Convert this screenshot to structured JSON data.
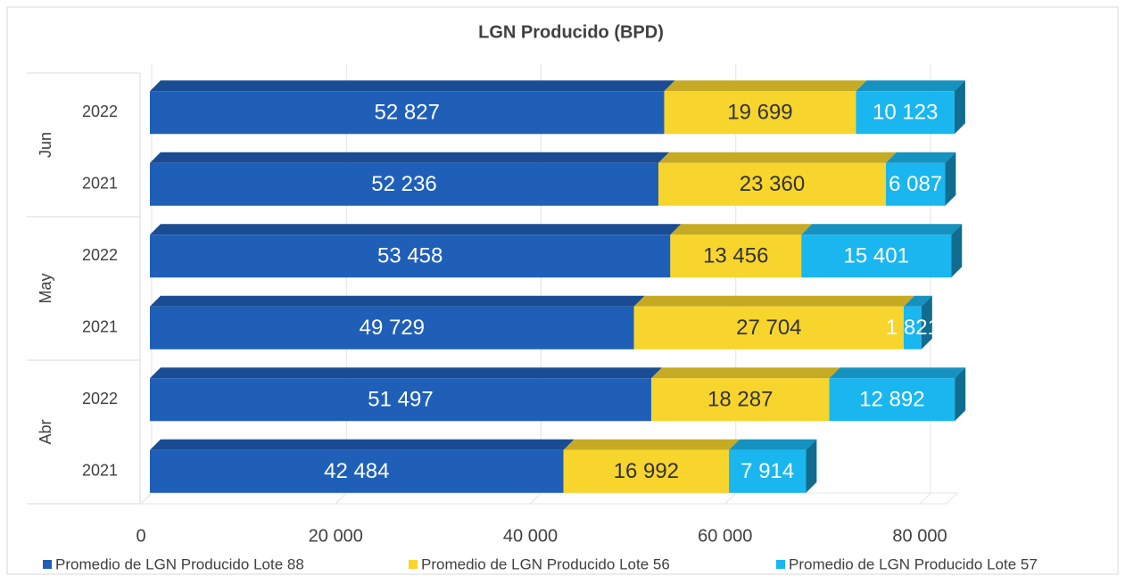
{
  "chart_data": {
    "type": "bar",
    "stacked": true,
    "orientation": "horizontal",
    "title": "LGN Producido (BPD)",
    "groups": [
      "Abr",
      "May",
      "Jun"
    ],
    "categories": [
      "2021",
      "2022",
      "2021",
      "2022",
      "2021",
      "2022"
    ],
    "series": [
      {
        "name": "Promedio de LGN Producido Lote 88",
        "color": "#1f5fb8",
        "label_color": "#ffffff",
        "values": [
          42484,
          51497,
          49729,
          53458,
          52236,
          52827
        ],
        "value_labels": [
          "42 484",
          "51 497",
          "49 729",
          "53 458",
          "52 236",
          "52 827"
        ]
      },
      {
        "name": "Promedio de LGN Producido Lote 56",
        "color": "#f7d52c",
        "label_color": "#333333",
        "values": [
          16992,
          18287,
          27704,
          13456,
          23360,
          19699
        ],
        "value_labels": [
          "16 992",
          "18 287",
          "27 704",
          "13 456",
          "23 360",
          "19 699"
        ]
      },
      {
        "name": "Promedio de LGN Producido Lote 57",
        "color": "#1ab6ef",
        "label_color": "#ffffff",
        "values": [
          7914,
          12892,
          1821,
          15401,
          6087,
          10123
        ],
        "value_labels": [
          "7 914",
          "12 892",
          "1 821",
          "15 401",
          "6 087",
          "10 123"
        ]
      }
    ],
    "xlim": [
      0,
      80000
    ],
    "xticks": [
      0,
      {
        "value": 20000,
        "label": "20 000"
      },
      {
        "value": 40000,
        "label": "40 000"
      },
      {
        "value": 60000,
        "label": "60 000"
      },
      {
        "value": 80000,
        "label": "80 000"
      }
    ],
    "grid": true,
    "legend": "bottom"
  }
}
